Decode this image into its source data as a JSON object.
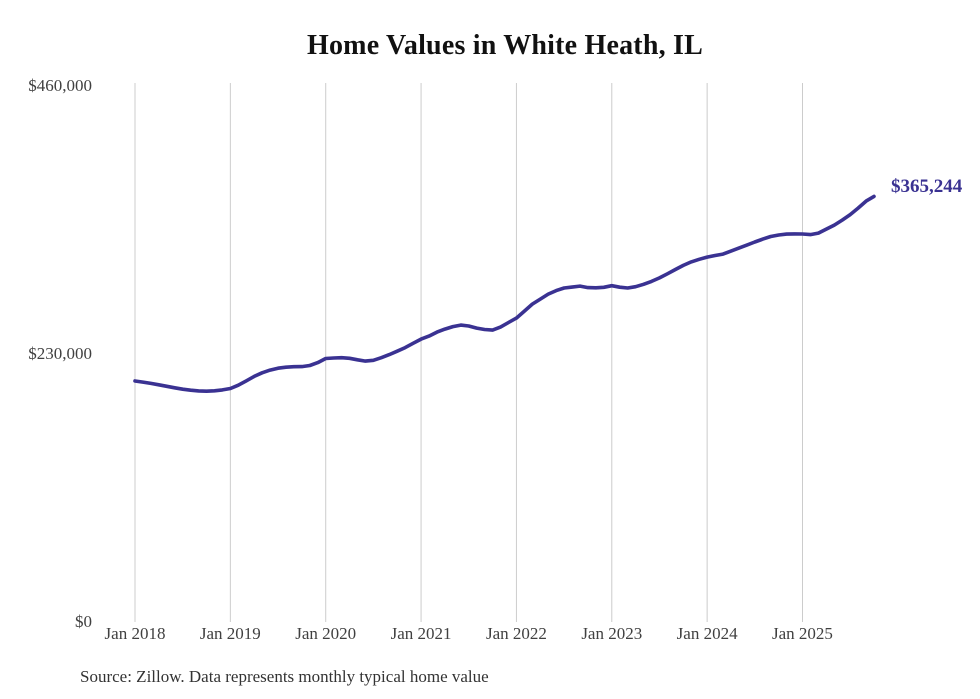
{
  "chart_data": {
    "type": "line",
    "title": "Home Values in White Heath, IL",
    "series_name": "Typical home value",
    "frequency": "monthly",
    "start_month": "2018-01",
    "end_month": "2025-10",
    "values": [
      206800,
      205900,
      204800,
      203600,
      202300,
      201000,
      199800,
      198900,
      198300,
      198100,
      198400,
      199200,
      200400,
      203200,
      206900,
      210800,
      213900,
      216200,
      217800,
      218700,
      219100,
      219200,
      220100,
      222600,
      226100,
      226600,
      226800,
      226300,
      225000,
      223900,
      224600,
      226800,
      229500,
      232400,
      235500,
      239200,
      242800,
      245400,
      248800,
      251400,
      253500,
      254800,
      254000,
      252200,
      251000,
      250500,
      253100,
      257000,
      260800,
      266800,
      272800,
      277100,
      281400,
      284400,
      286600,
      287400,
      288300,
      287000,
      286800,
      287200,
      288600,
      287300,
      286600,
      287800,
      289800,
      292300,
      295300,
      298800,
      302500,
      306000,
      309000,
      311300,
      313200,
      314500,
      315700,
      318300,
      320900,
      323500,
      326100,
      328600,
      330800,
      332100,
      332900,
      333100,
      333000,
      332500,
      333800,
      337200,
      340600,
      344900,
      349600,
      355200,
      361200,
      365244
    ],
    "latest_value": 365244,
    "annotation": {
      "text": "$365,244"
    },
    "y_axis": {
      "ylim": [
        0,
        460000
      ],
      "ticks": [
        {
          "label": "$0",
          "value": 0
        },
        {
          "label": "$230,000",
          "value": 230000
        },
        {
          "label": "$460,000",
          "value": 460000
        }
      ]
    },
    "x_axis": {
      "ticks": [
        "Jan 2018",
        "Jan 2019",
        "Jan 2020",
        "Jan 2021",
        "Jan 2022",
        "Jan 2023",
        "Jan 2024",
        "Jan 2025"
      ]
    },
    "grid": "vertical-only",
    "legend": "none",
    "colors": {
      "line": "#3a3292",
      "annotation": "#3a3292",
      "grid": "#cccccc",
      "tick_text": "#404040",
      "title_text": "#111111",
      "source_text": "#333333",
      "background": "#ffffff"
    }
  },
  "source": {
    "text": "Source: Zillow. Data represents monthly typical home value"
  }
}
